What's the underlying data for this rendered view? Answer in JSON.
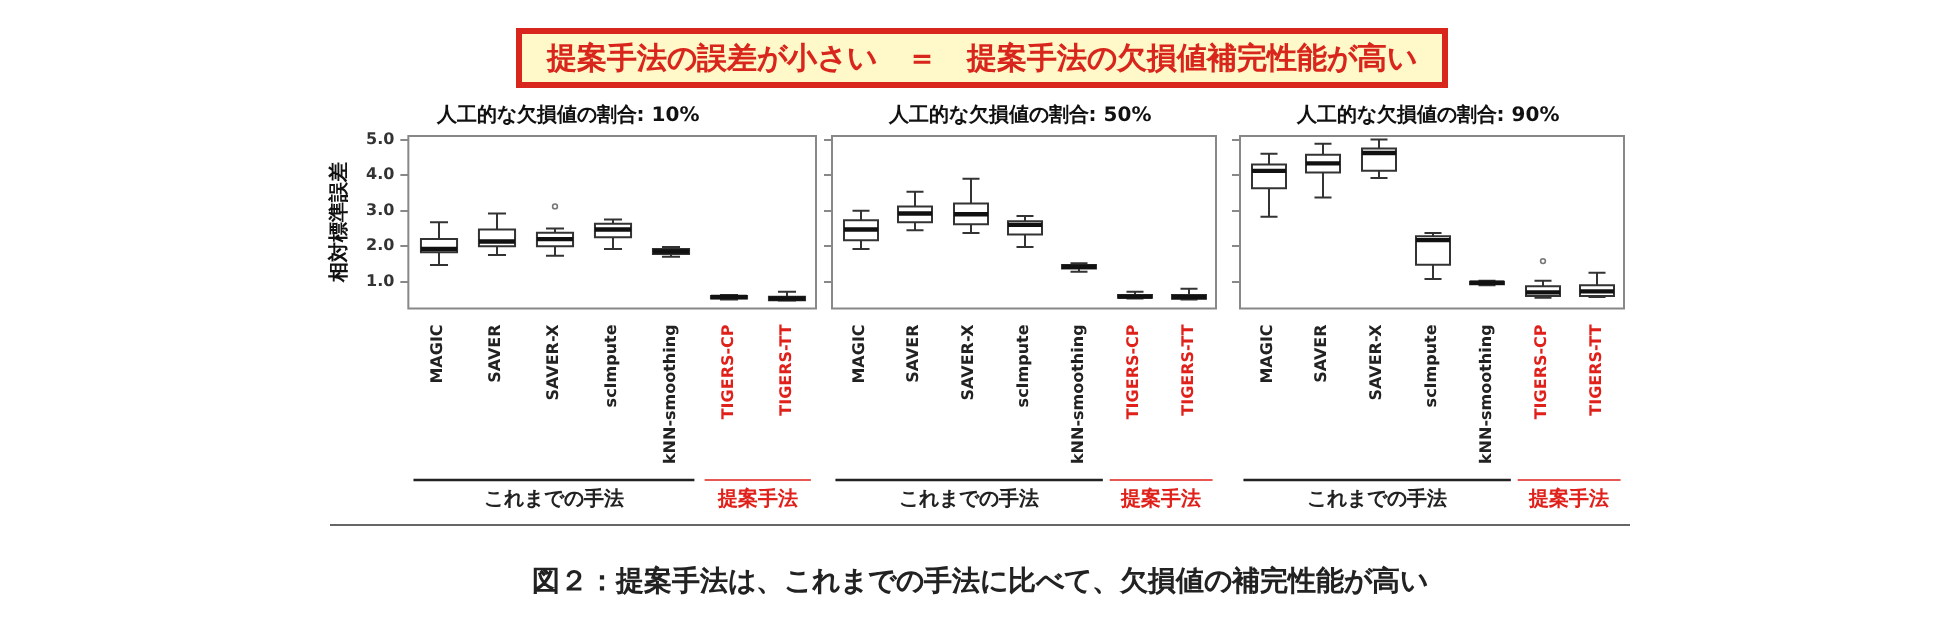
{
  "chart_data": [
    {
      "type": "box",
      "title": "人工的な欠損値の割合: 10%",
      "ylabel": "相対標準誤差",
      "categories": [
        "MAGIC",
        "SAVER",
        "SAVER-X",
        "scImpute",
        "kNN-smoothing",
        "TIGERS-CP",
        "TIGERS-TT"
      ],
      "ylim": [
        0.25,
        5.1
      ],
      "yticks": [
        {
          "value": 1,
          "label": "1.0"
        },
        {
          "value": 2,
          "label": "2.0"
        },
        {
          "value": 3,
          "label": "3.0"
        },
        {
          "value": 4,
          "label": "4.0"
        },
        {
          "value": 5,
          "label": "5.0"
        }
      ],
      "grid": false,
      "legend": false,
      "boxes": [
        {
          "low": 1.47,
          "q1": 1.83,
          "median": 1.92,
          "q3": 2.2,
          "high": 2.67
        },
        {
          "low": 1.75,
          "q1": 2.0,
          "median": 2.13,
          "q3": 2.47,
          "high": 2.92
        },
        {
          "low": 1.73,
          "q1": 2.0,
          "median": 2.2,
          "q3": 2.38,
          "high": 2.5,
          "outliers": [
            3.12
          ]
        },
        {
          "low": 1.92,
          "q1": 2.25,
          "median": 2.47,
          "q3": 2.63,
          "high": 2.75
        },
        {
          "low": 1.7,
          "q1": 1.78,
          "median": 1.85,
          "q3": 1.92,
          "high": 1.98
        },
        {
          "low": 0.5,
          "q1": 0.53,
          "median": 0.57,
          "q3": 0.6,
          "high": 0.63
        },
        {
          "low": 0.47,
          "q1": 0.48,
          "median": 0.53,
          "q3": 0.58,
          "high": 0.72
        }
      ],
      "annotations": [
        "これまでの手法",
        "提案手法",
        "提案手法の誤差が小さい　＝　提案手法の欠損値補完性能が高い",
        "図２：提案手法は、これまでの手法に比べて、欠損値の補完性能が高い"
      ]
    },
    {
      "type": "box",
      "title": "人工的な欠損値の割合: 50%",
      "categories": [
        "MAGIC",
        "SAVER",
        "SAVER-X",
        "scImpute",
        "kNN-smoothing",
        "TIGERS-CP",
        "TIGERS-TT"
      ],
      "ylim": [
        0.25,
        5.1
      ],
      "yticks": [
        1,
        2,
        3,
        4,
        5
      ],
      "tick_labels": "x",
      "grid": false,
      "legend": false,
      "boxes": [
        {
          "low": 1.92,
          "q1": 2.17,
          "median": 2.47,
          "q3": 2.73,
          "high": 3.0
        },
        {
          "low": 2.45,
          "q1": 2.67,
          "median": 2.92,
          "q3": 3.12,
          "high": 3.53
        },
        {
          "low": 2.37,
          "q1": 2.62,
          "median": 2.9,
          "q3": 3.2,
          "high": 3.9
        },
        {
          "low": 1.98,
          "q1": 2.33,
          "median": 2.6,
          "q3": 2.7,
          "high": 2.85
        },
        {
          "low": 1.28,
          "q1": 1.37,
          "median": 1.42,
          "q3": 1.47,
          "high": 1.52
        },
        {
          "low": 0.53,
          "q1": 0.55,
          "median": 0.58,
          "q3": 0.63,
          "high": 0.72
        },
        {
          "low": 0.5,
          "q1": 0.52,
          "median": 0.57,
          "q3": 0.63,
          "high": 0.8
        }
      ],
      "annotations": [
        "これまでの手法",
        "提案手法"
      ]
    },
    {
      "type": "box",
      "title": "人工的な欠損値の割合: 90%",
      "categories": [
        "MAGIC",
        "SAVER",
        "SAVER-X",
        "scImpute",
        "kNN-smoothing",
        "TIGERS-CP",
        "TIGERS-TT"
      ],
      "ylim": [
        0.25,
        5.1
      ],
      "yticks": [
        1,
        2,
        3,
        4,
        5
      ],
      "tick_labels": "x",
      "grid": false,
      "legend": false,
      "boxes": [
        {
          "low": 2.83,
          "q1": 3.63,
          "median": 4.12,
          "q3": 4.3,
          "high": 4.6
        },
        {
          "low": 3.37,
          "q1": 4.07,
          "median": 4.33,
          "q3": 4.57,
          "high": 4.88
        },
        {
          "low": 3.92,
          "q1": 4.12,
          "median": 4.62,
          "q3": 4.75,
          "high": 5.0
        },
        {
          "low": 1.08,
          "q1": 1.48,
          "median": 2.17,
          "q3": 2.28,
          "high": 2.37
        },
        {
          "low": 0.9,
          "q1": 0.93,
          "median": 0.97,
          "q3": 1.0,
          "high": 1.03
        },
        {
          "low": 0.55,
          "q1": 0.6,
          "median": 0.7,
          "q3": 0.87,
          "high": 1.03,
          "outliers": [
            1.58
          ]
        },
        {
          "low": 0.57,
          "q1": 0.6,
          "median": 0.73,
          "q3": 0.9,
          "high": 1.25
        }
      ],
      "annotations": [
        "これまでの手法",
        "提案手法"
      ]
    }
  ]
}
